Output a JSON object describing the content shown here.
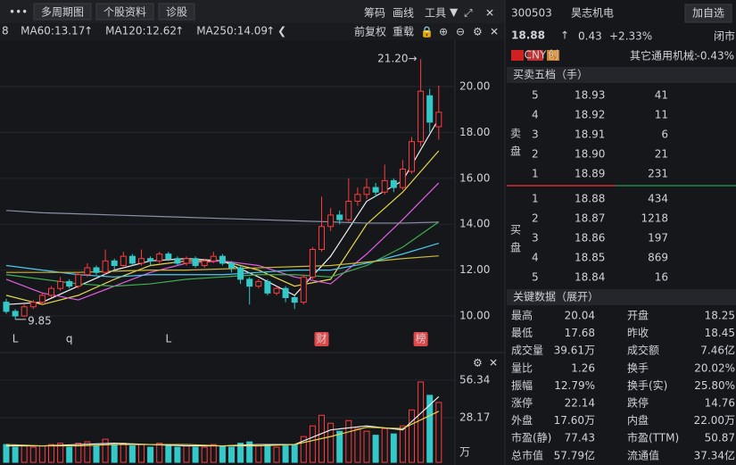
{
  "toolbar": {
    "menu": "•••",
    "buttons": [
      "多周期图",
      "个股资料",
      "诊股"
    ],
    "tools": [
      "筹码",
      "画线",
      "工具"
    ]
  },
  "ma_legend": [
    {
      "text": "8",
      "color": "#3cd070"
    },
    {
      "text": "MA60:13.17",
      "arrow": "↑",
      "color": "#4fc8ef"
    },
    {
      "text": "MA120:12.62",
      "arrow": "↑",
      "color": "#e8d84a"
    },
    {
      "text": "MA250:14.09",
      "arrow": "↑",
      "color": "#b8bcc8"
    }
  ],
  "adjust": [
    "前复权",
    "重载"
  ],
  "chart_data": [
    {
      "type": "candlestick",
      "up_color": "#ff3b3b",
      "down_color": "#35c8c8",
      "open": [
        10.6,
        10.2,
        10.0,
        10.4,
        10.6,
        10.9,
        11.2,
        11.5,
        11.3,
        11.8,
        12.1,
        11.9,
        12.4,
        12.2,
        12.6,
        12.3,
        12.5,
        12.4,
        12.7,
        12.5,
        12.3,
        12.5,
        12.2,
        12.4,
        12.6,
        12.3,
        12.1,
        11.6,
        11.3,
        11.5,
        11.0,
        11.2,
        10.8,
        10.6,
        11.7,
        12.9,
        13.9,
        14.4,
        14.2,
        15.0,
        15.3,
        15.6,
        15.4,
        15.9,
        15.6,
        16.3,
        17.6,
        19.6,
        18.25
      ],
      "high": [
        10.75,
        10.3,
        10.5,
        10.7,
        11.0,
        11.3,
        11.7,
        11.6,
        11.9,
        12.3,
        12.2,
        12.9,
        12.5,
        12.8,
        12.7,
        12.9,
        12.6,
        12.8,
        12.8,
        12.6,
        12.6,
        12.6,
        12.5,
        12.8,
        12.7,
        12.4,
        12.2,
        11.7,
        11.6,
        11.6,
        11.3,
        11.3,
        10.9,
        11.8,
        13.0,
        15.2,
        14.7,
        14.6,
        16.0,
        15.6,
        16.0,
        15.8,
        16.6,
        16.0,
        16.8,
        17.8,
        21.2,
        19.9,
        20.04
      ],
      "low": [
        10.1,
        9.85,
        9.95,
        10.3,
        10.5,
        10.8,
        11.1,
        11.2,
        11.2,
        11.7,
        11.8,
        11.8,
        12.0,
        12.1,
        12.2,
        12.2,
        12.2,
        12.3,
        12.4,
        12.2,
        12.2,
        12.1,
        12.1,
        12.3,
        12.2,
        11.9,
        11.4,
        10.5,
        11.2,
        10.9,
        10.9,
        10.6,
        10.3,
        10.5,
        11.6,
        12.8,
        13.7,
        14.0,
        14.1,
        14.8,
        15.1,
        15.2,
        15.3,
        15.4,
        15.5,
        16.2,
        17.4,
        18.0,
        17.68
      ],
      "close": [
        10.2,
        10.0,
        10.4,
        10.6,
        10.9,
        11.2,
        11.5,
        11.3,
        11.8,
        12.1,
        11.9,
        12.4,
        12.2,
        12.6,
        12.3,
        12.5,
        12.4,
        12.7,
        12.5,
        12.3,
        12.5,
        12.2,
        12.4,
        12.6,
        12.3,
        12.1,
        11.6,
        11.3,
        11.5,
        11.0,
        11.2,
        10.8,
        10.6,
        11.7,
        12.9,
        13.9,
        14.4,
        14.2,
        15.0,
        15.3,
        15.6,
        15.4,
        15.9,
        15.6,
        16.4,
        17.6,
        19.8,
        18.45,
        18.88
      ],
      "line_x": [
        0,
        4,
        8,
        12,
        16,
        20,
        24,
        28,
        32,
        36,
        40,
        44,
        48
      ],
      "series": [
        {
          "color": "#f0f0f0",
          "values": [
            10.5,
            10.6,
            11.3,
            12.0,
            12.4,
            12.5,
            12.4,
            11.7,
            10.9,
            12.6,
            15.0,
            15.9,
            18.6
          ]
        },
        {
          "color": "#e8d84a",
          "values": [
            10.9,
            10.5,
            10.9,
            11.6,
            12.2,
            12.4,
            12.4,
            12.0,
            11.3,
            11.6,
            14.0,
            15.4,
            17.2
          ]
        },
        {
          "color": "#e060e0",
          "values": [
            11.6,
            11.0,
            10.7,
            11.3,
            11.9,
            12.3,
            12.4,
            12.2,
            11.7,
            11.4,
            12.7,
            14.2,
            15.8
          ]
        },
        {
          "color": "#3cb050",
          "values": [
            11.8,
            11.6,
            11.4,
            11.3,
            11.4,
            11.6,
            11.7,
            11.8,
            11.8,
            11.7,
            12.2,
            13.0,
            14.1
          ]
        },
        {
          "color": "#4fc8ef",
          "values": [
            12.2,
            12.0,
            11.8,
            11.7,
            11.8,
            11.8,
            11.8,
            11.9,
            12.0,
            12.0,
            12.3,
            12.7,
            13.17
          ]
        },
        {
          "color": "#c8b840",
          "values": [
            11.9,
            11.9,
            11.9,
            11.95,
            12.0,
            12.0,
            12.05,
            12.1,
            12.15,
            12.2,
            12.35,
            12.5,
            12.62
          ]
        },
        {
          "color": "#8890a8",
          "values": [
            14.6,
            14.5,
            14.45,
            14.4,
            14.35,
            14.3,
            14.25,
            14.2,
            14.15,
            14.1,
            14.05,
            14.05,
            14.09
          ]
        }
      ],
      "ylim": [
        8.6,
        21.44
      ],
      "yticks": [
        {
          "value": 10,
          "label": "10.00"
        },
        {
          "value": 12,
          "label": "12.00"
        },
        {
          "value": 14,
          "label": "14.00"
        },
        {
          "value": 16,
          "label": "16.00"
        },
        {
          "value": 18,
          "label": "18.00"
        },
        {
          "value": 20,
          "label": "20.00"
        }
      ],
      "max_label": {
        "text": "21.20→",
        "x": 46
      },
      "min_label": {
        "text": "9.85",
        "x": 1
      },
      "markers": [
        {
          "label": "L",
          "x": 1
        },
        {
          "label": "q",
          "x": 7
        },
        {
          "label": "L",
          "x": 18
        },
        {
          "label": "财",
          "x": 35,
          "boxed": true
        },
        {
          "label": "榜",
          "x": 46,
          "boxed": true
        }
      ]
    },
    {
      "type": "volume",
      "unit": "万",
      "values": [
        8,
        6,
        7,
        6,
        7,
        8,
        9,
        6,
        9,
        10,
        7,
        12,
        8,
        9,
        7,
        8,
        6,
        9,
        7,
        6,
        7,
        6,
        6,
        8,
        7,
        6,
        9,
        10,
        7,
        8,
        6,
        7,
        8,
        14,
        22,
        30,
        24,
        18,
        26,
        20,
        18,
        15,
        20,
        16,
        22,
        34,
        55,
        45,
        39.61
      ],
      "line_x": [
        0,
        4,
        8,
        12,
        16,
        20,
        24,
        28,
        32,
        36,
        40,
        44,
        48
      ],
      "series": [
        {
          "color": "#f0f0f0",
          "values": [
            7,
            7,
            8,
            9,
            8,
            7,
            7,
            8,
            8,
            19,
            22,
            19,
            44
          ]
        },
        {
          "color": "#e8d84a",
          "values": [
            8,
            7,
            7,
            8,
            8,
            8,
            7,
            7,
            8,
            14,
            21,
            20,
            33
          ]
        }
      ],
      "ylim": [
        0,
        56.34
      ],
      "yticks": [
        28.17,
        56.34
      ]
    }
  ],
  "quote": {
    "code": "300503",
    "name": "昊志机电",
    "add": "加自选",
    "price": "18.88",
    "arrow": "↑",
    "change": "0.43",
    "pct": "+2.33%",
    "status": "闭市",
    "badges": [
      "CNY",
      "创"
    ],
    "industry": "其它通用机械:",
    "industry_pct": "-0.43%",
    "book_title": "买卖五档（手）",
    "sell_label": "卖盘",
    "buy_label": "买盘",
    "sell": [
      [
        "5",
        "18.93",
        "41"
      ],
      [
        "4",
        "18.92",
        "11"
      ],
      [
        "3",
        "18.91",
        "6"
      ],
      [
        "2",
        "18.90",
        "21"
      ],
      [
        "1",
        "18.89",
        "231"
      ]
    ],
    "buy": [
      [
        "1",
        "18.88",
        "434"
      ],
      [
        "2",
        "18.87",
        "1218"
      ],
      [
        "3",
        "18.86",
        "197"
      ],
      [
        "4",
        "18.85",
        "869"
      ],
      [
        "5",
        "18.84",
        "16"
      ]
    ],
    "key_title": "关键数据（展开）",
    "key": [
      [
        "最高",
        "20.04",
        "开盘",
        "18.25"
      ],
      [
        "最低",
        "17.68",
        "昨收",
        "18.45"
      ],
      [
        "成交量",
        "39.61万",
        "成交额",
        "7.46亿"
      ],
      [
        "量比",
        "1.26",
        "换手",
        "20.02%"
      ],
      [
        "振幅",
        "12.79%",
        "换手(实)",
        "25.80%"
      ],
      [
        "涨停",
        "22.14",
        "跌停",
        "14.76"
      ],
      [
        "外盘",
        "17.60万",
        "内盘",
        "22.00万"
      ],
      [
        "市盈(静)",
        "77.43",
        "市盈(TTM)",
        "50.87"
      ],
      [
        "总市值",
        "57.79亿",
        "流通值",
        "37.34亿"
      ]
    ],
    "key_colors": [
      [
        "#ff3b3b",
        "#3cd070"
      ],
      [
        "#3cd070",
        "#f0f0f0"
      ],
      [
        "#4fc8ef",
        "#4fc8ef"
      ],
      [
        "#4fc8ef",
        "#4fc8ef"
      ],
      [
        "#4fc8ef",
        "#4fc8ef"
      ],
      [
        "#ff3b3b",
        "#3cd070"
      ],
      [
        "#ff3b3b",
        "#3cd070"
      ],
      [
        "#4fc8ef",
        "#4fc8ef"
      ],
      [
        "#4fc8ef",
        "#4fc8ef"
      ]
    ]
  }
}
